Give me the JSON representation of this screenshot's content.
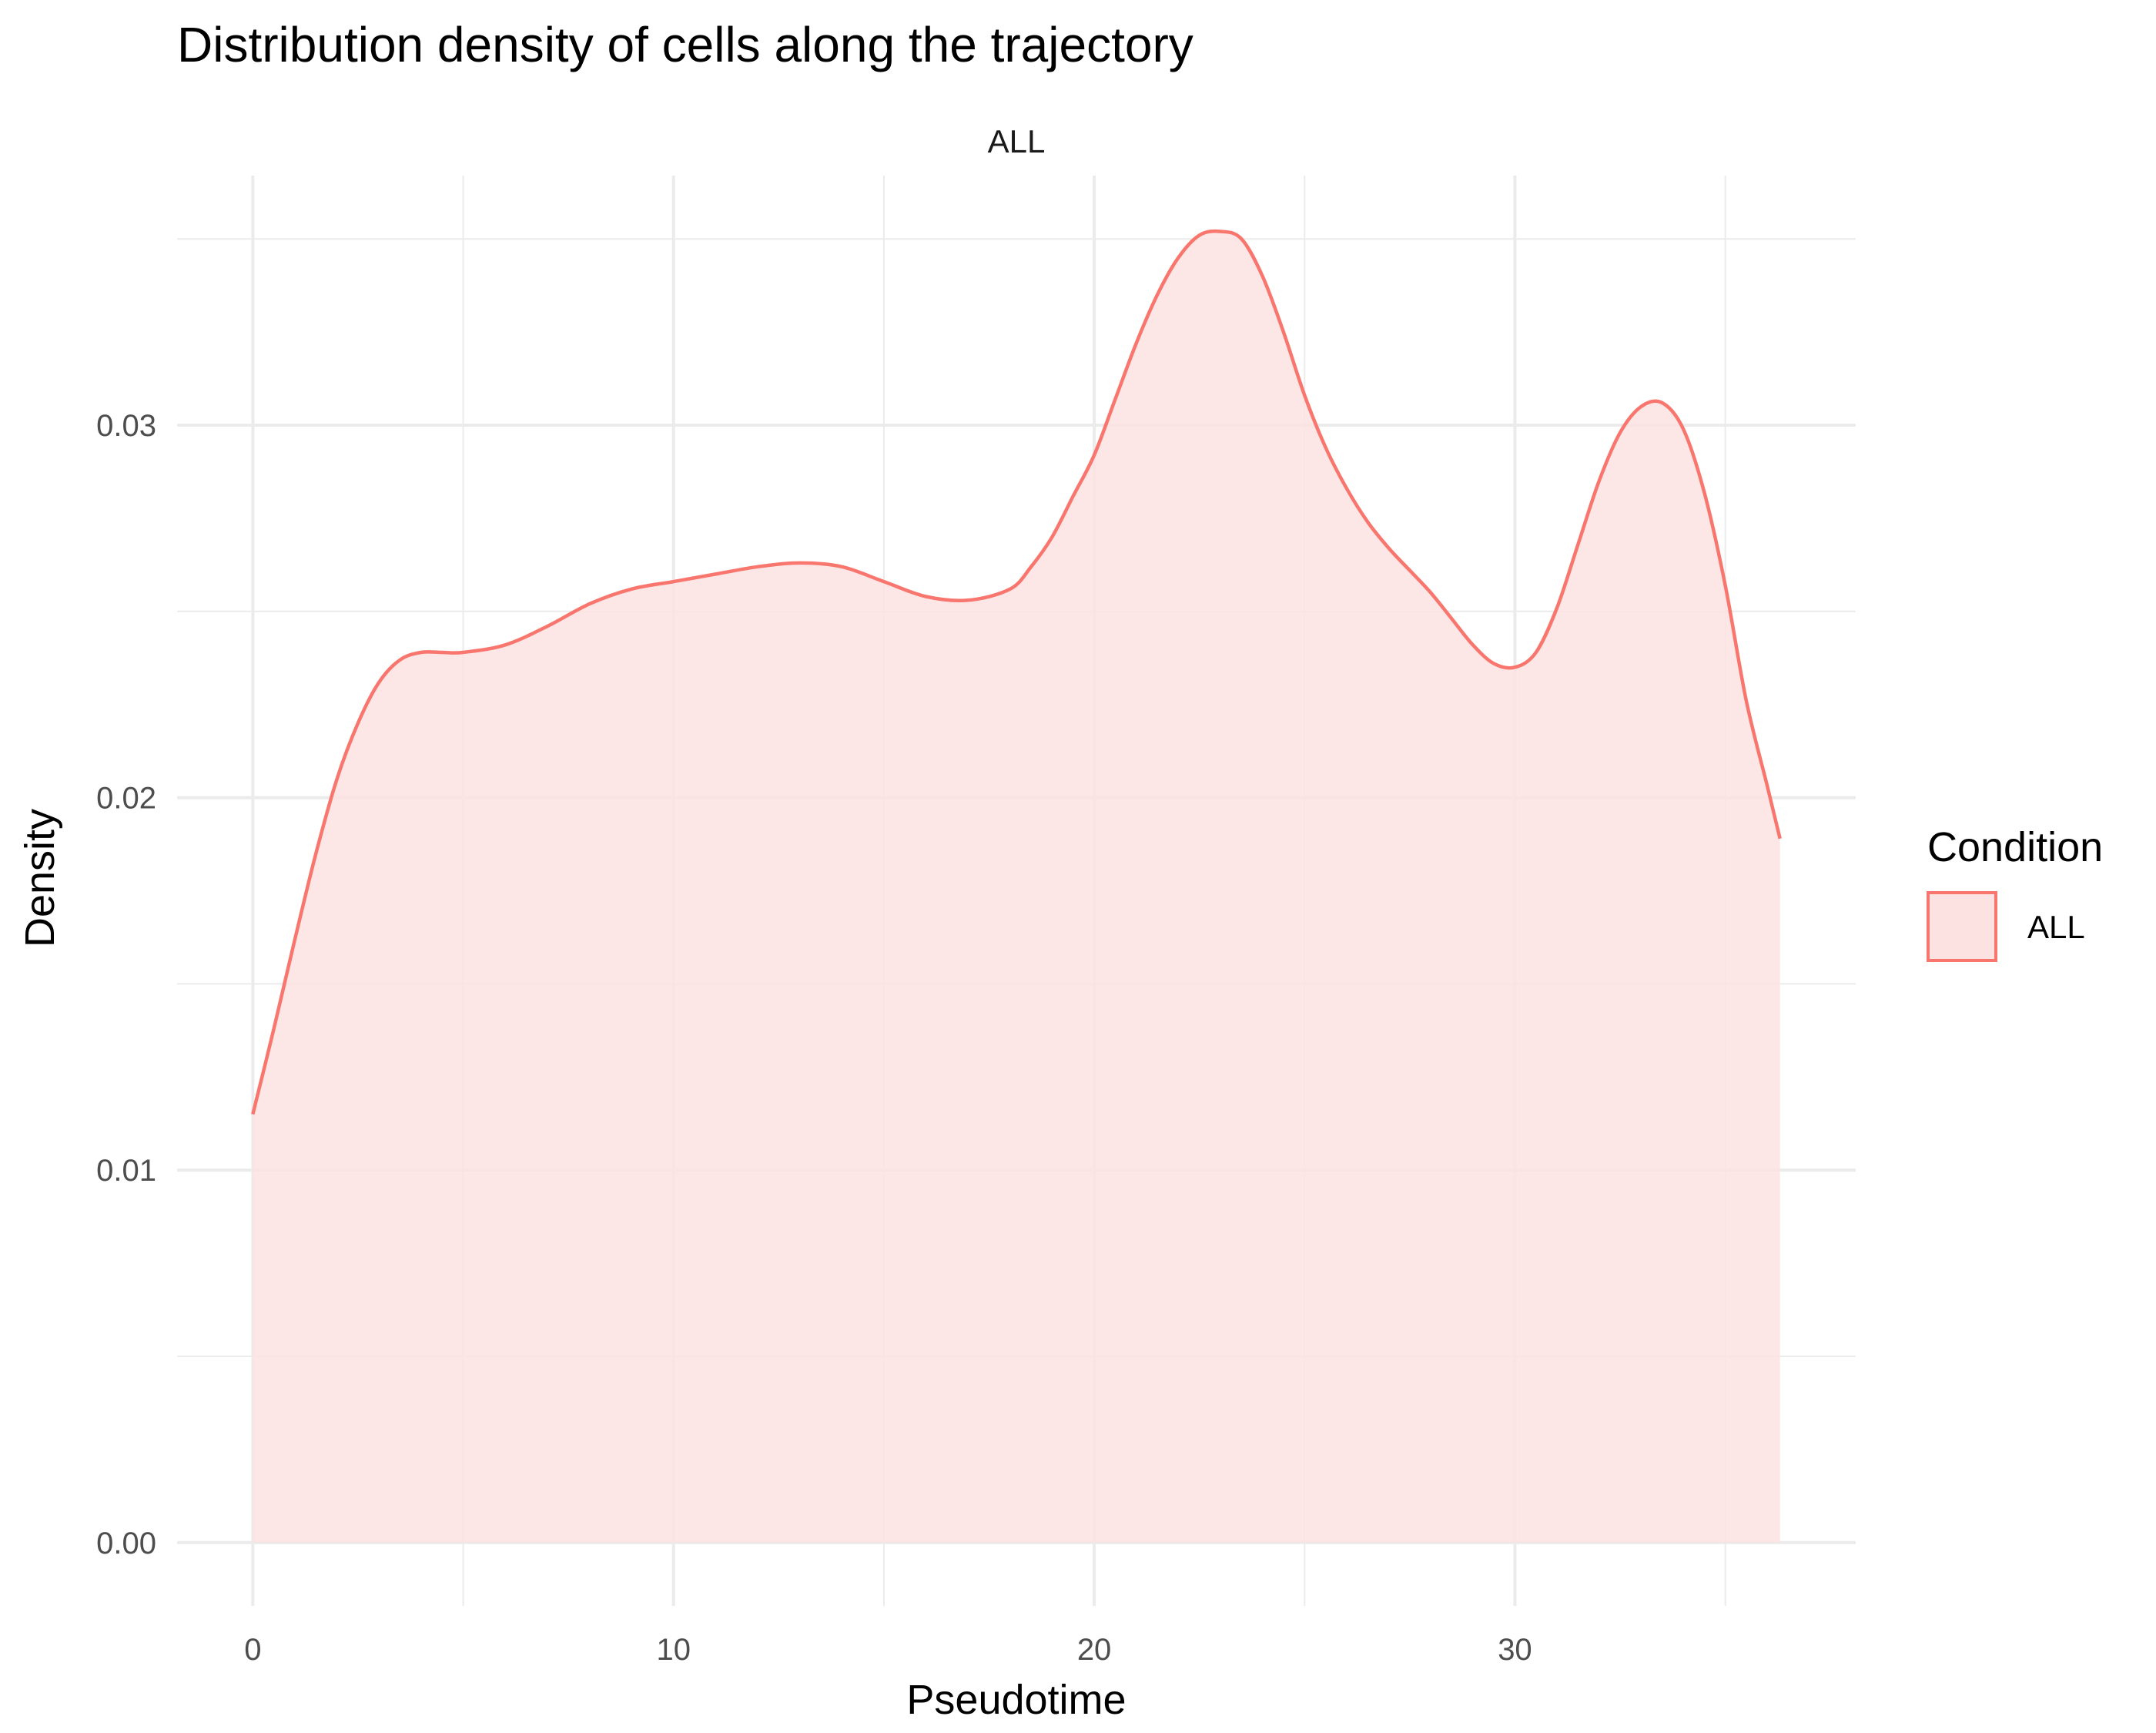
{
  "chart_data": {
    "type": "area",
    "title": "Distribution density of cells along the trajectory",
    "facet_label": "ALL",
    "xlabel": "Pseudotime",
    "ylabel": "Density",
    "xlim": [
      -1.8,
      38.1
    ],
    "ylim": [
      -0.0017,
      0.0367
    ],
    "x_ticks": [
      0,
      10,
      20,
      30
    ],
    "x_minor_ticks": [
      5,
      15,
      25,
      35
    ],
    "y_ticks": [
      0.0,
      0.01,
      0.02,
      0.03
    ],
    "y_tick_labels": [
      "0.00",
      "0.01",
      "0.02",
      "0.03"
    ],
    "y_minor_ticks": [
      0.005,
      0.015,
      0.025,
      0.035
    ],
    "grid": true,
    "legend": {
      "title": "Condition",
      "position": "right"
    },
    "series": [
      {
        "name": "ALL",
        "color": "#F8766D",
        "fill": "#FDE2E2",
        "x": [
          0,
          0.5,
          1,
          1.5,
          2,
          2.5,
          3,
          3.5,
          4,
          4.5,
          5,
          6,
          7,
          8,
          9,
          10,
          11,
          12,
          13,
          14,
          15,
          16,
          17,
          18,
          18.5,
          19,
          19.5,
          20,
          20.5,
          21,
          21.5,
          22,
          22.5,
          23,
          23.5,
          24,
          24.5,
          25,
          25.5,
          26,
          26.5,
          27,
          27.5,
          28,
          28.5,
          29,
          29.5,
          30,
          30.5,
          31,
          31.5,
          32,
          32.5,
          33,
          33.5,
          34,
          34.5,
          35,
          35.5,
          36,
          36.3
        ],
        "y": [
          0.0115,
          0.0138,
          0.0162,
          0.0185,
          0.0205,
          0.022,
          0.0231,
          0.0237,
          0.0239,
          0.0239,
          0.0239,
          0.0241,
          0.0246,
          0.0252,
          0.0256,
          0.0258,
          0.026,
          0.0262,
          0.0263,
          0.0262,
          0.0258,
          0.0254,
          0.0253,
          0.0256,
          0.0262,
          0.027,
          0.0281,
          0.0292,
          0.0307,
          0.0322,
          0.0335,
          0.0345,
          0.0351,
          0.0352,
          0.035,
          0.034,
          0.0325,
          0.0308,
          0.0294,
          0.0283,
          0.0274,
          0.0267,
          0.0261,
          0.0255,
          0.0248,
          0.0241,
          0.0236,
          0.0235,
          0.0239,
          0.0251,
          0.0268,
          0.0285,
          0.0298,
          0.0305,
          0.0306,
          0.0299,
          0.0282,
          0.0257,
          0.0226,
          0.0203,
          0.0189
        ]
      }
    ]
  }
}
